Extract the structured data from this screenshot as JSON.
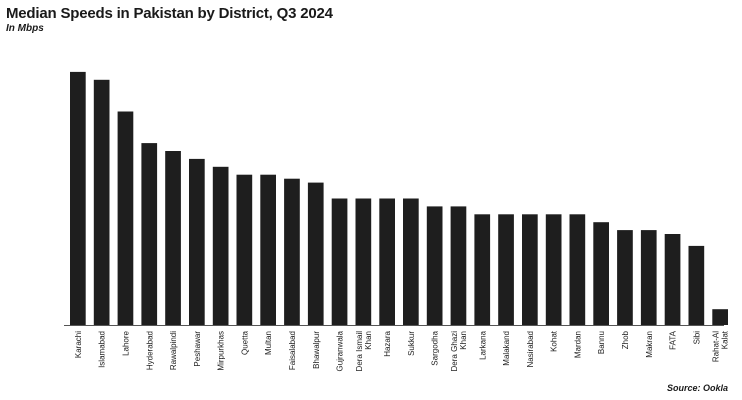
{
  "title": "Median Speeds in Pakistan by District, Q3 2024",
  "subtitle": "In Mbps",
  "source": "Source: Ookla",
  "chart_data": {
    "type": "bar",
    "title": "Median Speeds in Pakistan by District, Q3 2024",
    "subtitle": "In Mbps",
    "xlabel": "",
    "ylabel": "",
    "categories": [
      "Karachi",
      "Islamabad",
      "Lahore",
      "Hyderabad",
      "Rawalpindi",
      "Peshawar",
      "Mirpurkhas",
      "Quetta",
      "Multan",
      "Faisalabad",
      "Bhawalpur",
      "Gujranwala",
      "Dera Ismail Khan",
      "Hazara",
      "Sukkur",
      "Sargodha",
      "Dera Ghazi Khan",
      "Larkana",
      "Malakand",
      "Nasirabad",
      "Kohat",
      "Mardan",
      "Bannu",
      "Zhob",
      "Makran",
      "FATA",
      "Sibi",
      "Rahat-Al Kalat"
    ],
    "values": [
      32,
      31,
      27,
      23,
      22,
      21,
      20,
      19,
      19,
      18.5,
      18,
      16,
      16,
      16,
      16,
      15,
      15,
      14,
      14,
      14,
      14,
      14,
      13,
      12,
      12,
      11.5,
      10,
      2
    ],
    "ylim": [
      0,
      33
    ],
    "grid": false,
    "legend": "none",
    "bar_color": "#1e1e1e",
    "axis_color": "#555555"
  }
}
